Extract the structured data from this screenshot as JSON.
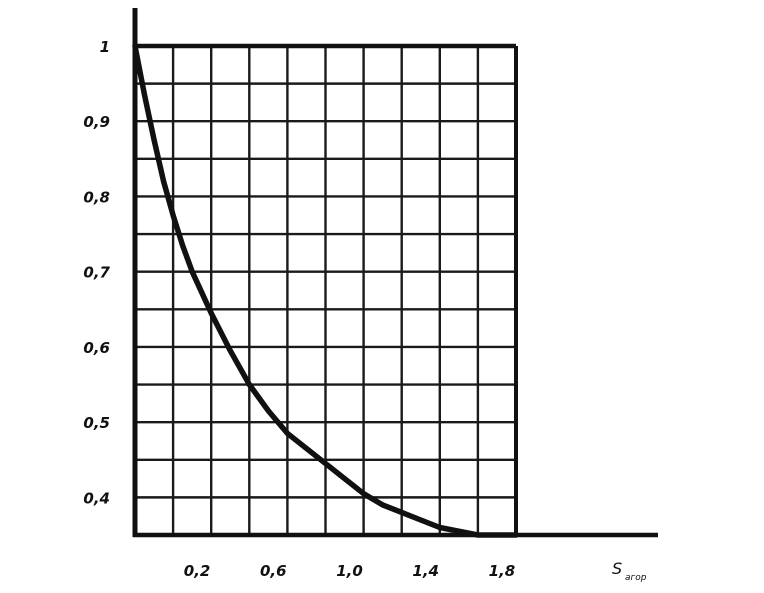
{
  "chart_data": {
    "type": "line",
    "title": "",
    "xlabel": {
      "main": "S",
      "subscript": "агор"
    },
    "ylabel": "",
    "xlim": [
      0,
      2.0
    ],
    "ylim": [
      0.35,
      1.0
    ],
    "grid": true,
    "x_tick_values": [
      0.2,
      0.6,
      1.0,
      1.4,
      1.8
    ],
    "x_tick_labels": [
      "0,2",
      "0,6",
      "1,0",
      "1,4",
      "1,8"
    ],
    "y_tick_values": [
      1.0,
      0.9,
      0.8,
      0.7,
      0.6,
      0.5,
      0.4
    ],
    "y_tick_labels": [
      "1",
      "0,9",
      "0,8",
      "0,7",
      "0,6",
      "0,5",
      "0,4"
    ],
    "series": [
      {
        "x": [
          0.0,
          0.05,
          0.1,
          0.15,
          0.2,
          0.25,
          0.3,
          0.4,
          0.5,
          0.6,
          0.7,
          0.8,
          0.9,
          1.0,
          1.1,
          1.2,
          1.3,
          1.4,
          1.5,
          1.6,
          1.7,
          1.8,
          1.9,
          2.0
        ],
        "y": [
          1.0,
          0.935,
          0.875,
          0.82,
          0.775,
          0.735,
          0.7,
          0.645,
          0.595,
          0.55,
          0.515,
          0.485,
          0.465,
          0.445,
          0.425,
          0.405,
          0.39,
          0.38,
          0.37,
          0.36,
          0.355,
          0.35,
          0.35,
          0.35
        ]
      }
    ]
  }
}
